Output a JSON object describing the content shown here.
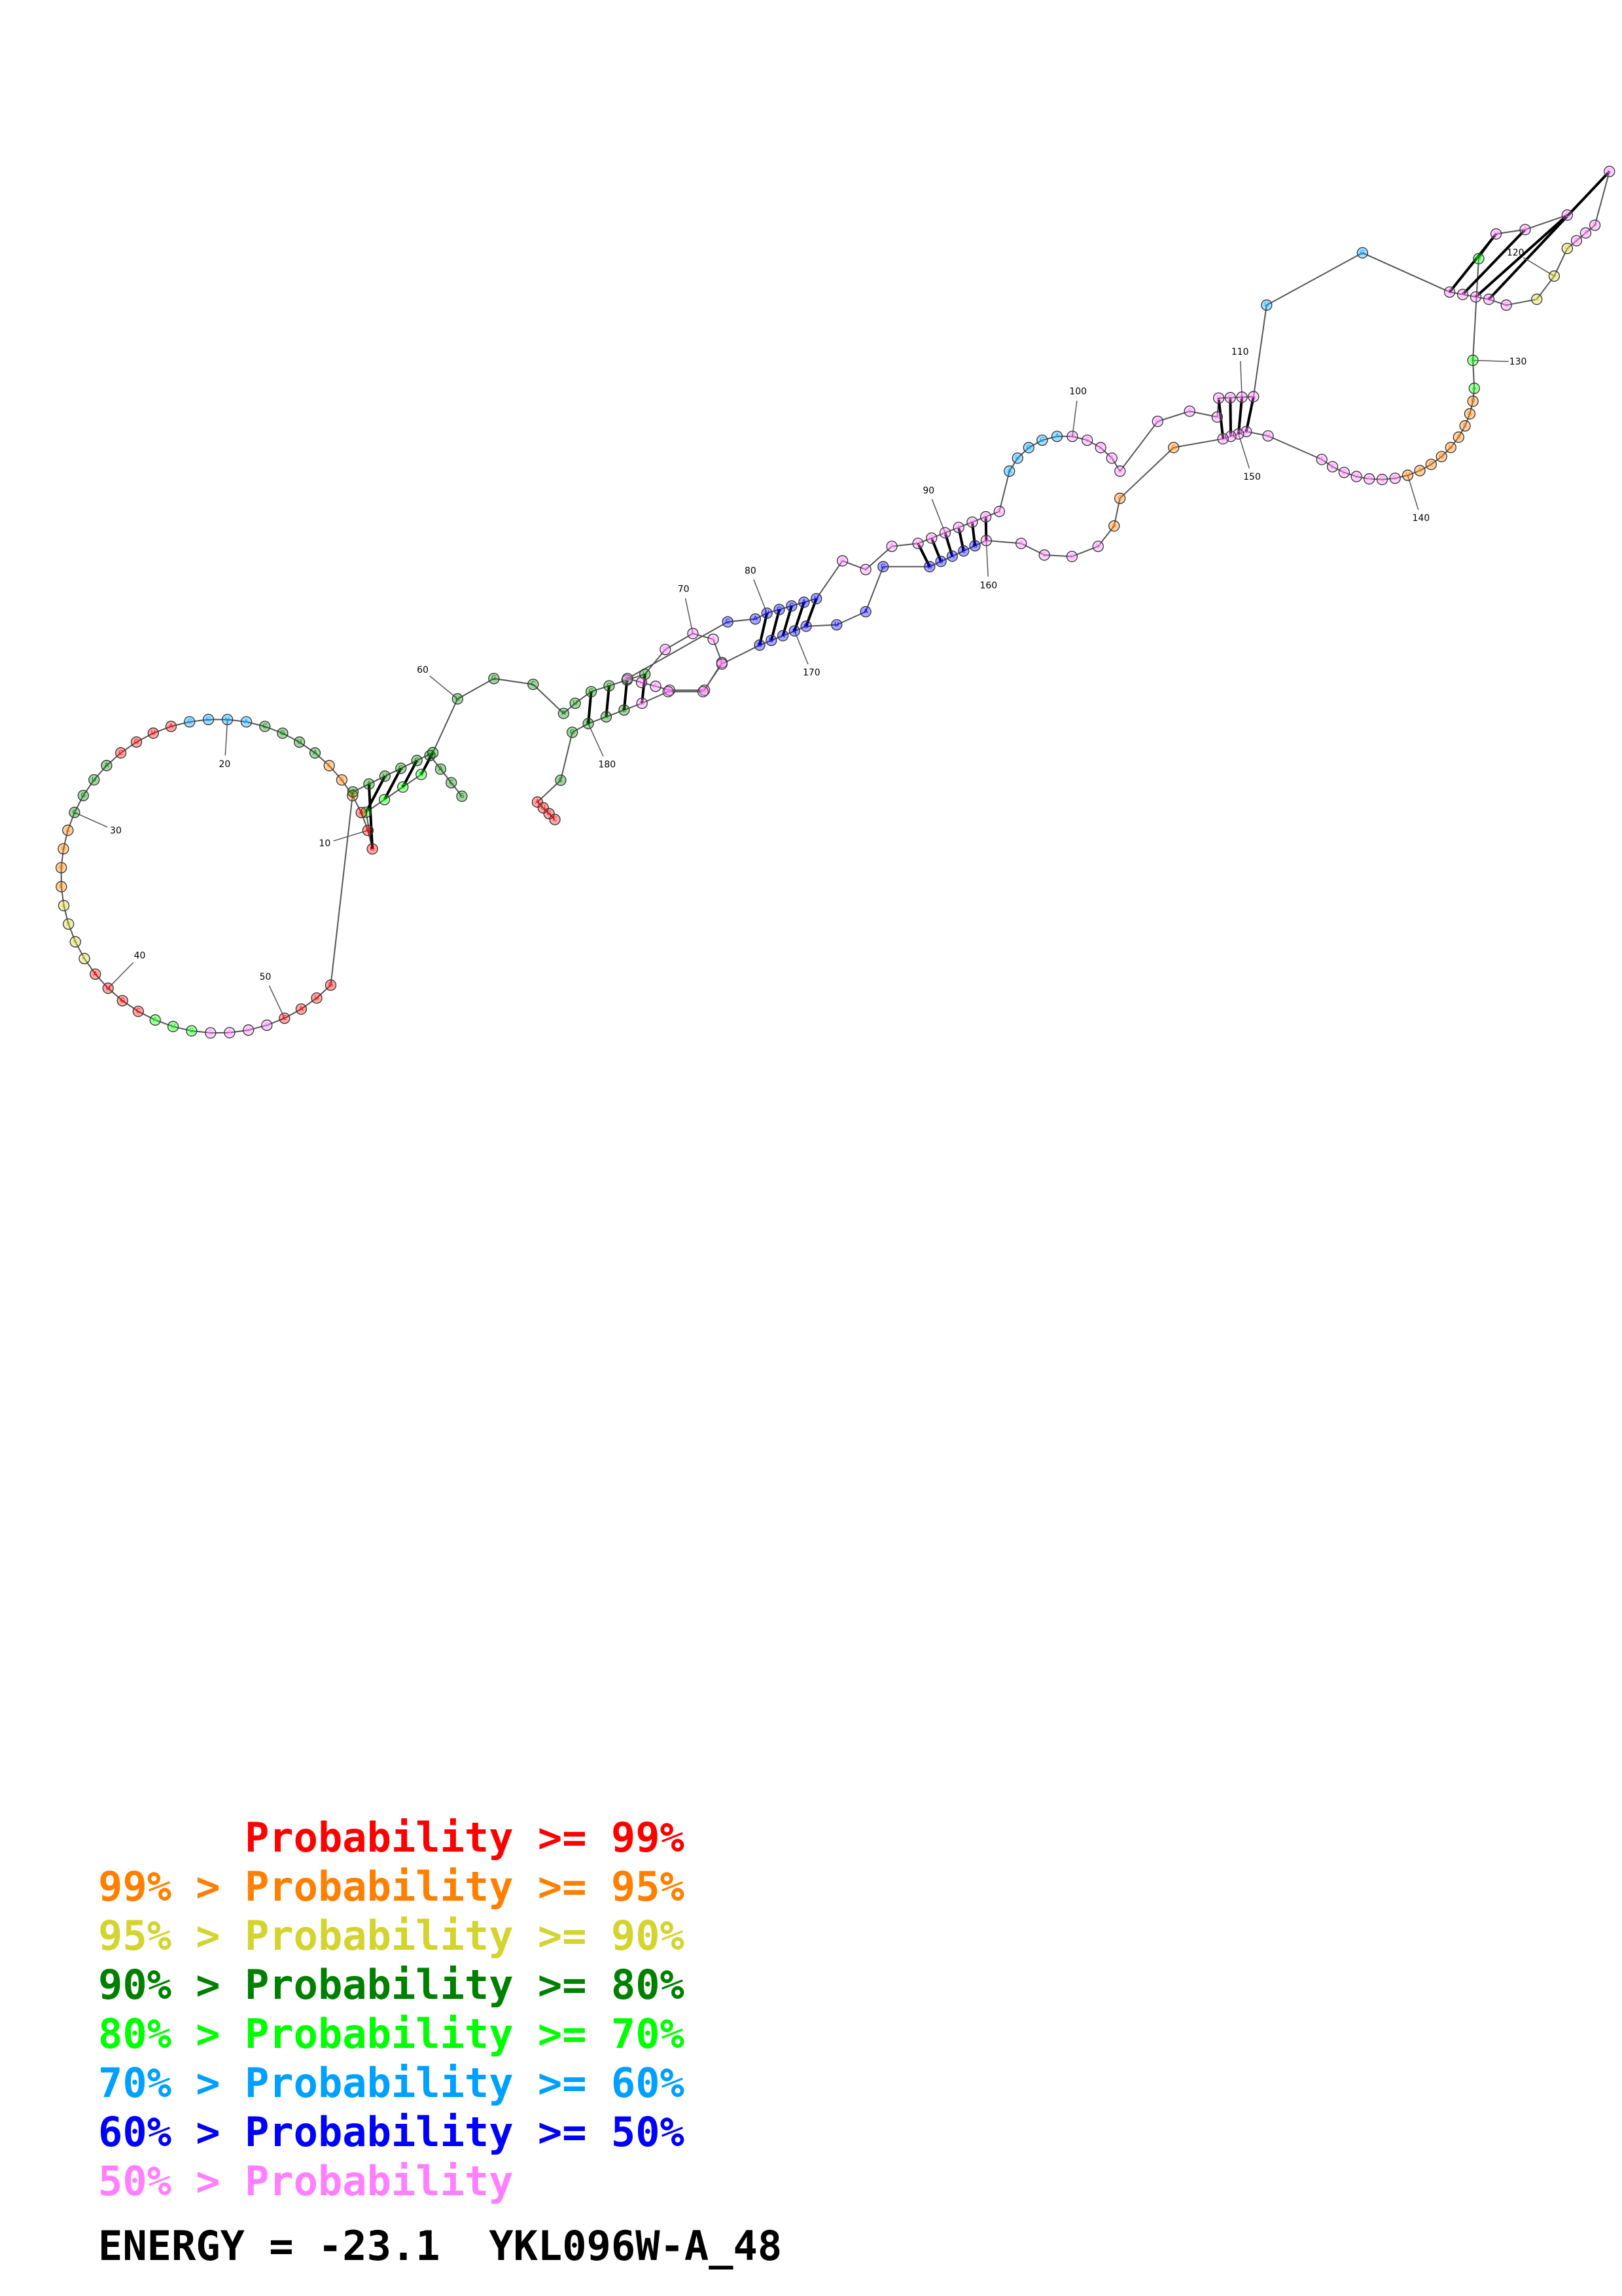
{
  "figure": {
    "colors": {
      "p99": "#ff0000",
      "p95": "#ff8000",
      "p90": "#d4d430",
      "p80": "#008000",
      "p70": "#00ff00",
      "p60": "#00a0ff",
      "p50": "#0000ff",
      "plow": "#ff80ff",
      "backbone": "#555555",
      "pair": "#000000"
    },
    "sequence_length": 186,
    "position_labels": [
      "10",
      "20",
      "30",
      "40",
      "50",
      "60",
      "70",
      "80",
      "90",
      "100",
      "110",
      "120",
      "130",
      "140",
      "150",
      "160",
      "170",
      "180"
    ]
  },
  "legend": {
    "rows": [
      {
        "prefix": "    ",
        "text": "Probability >= 99%",
        "color_key": "p99"
      },
      {
        "prefix": "99% > ",
        "text": "Probability >= 95%",
        "color_key": "p95"
      },
      {
        "prefix": "95% > ",
        "text": "Probability >= 90%",
        "color_key": "p90"
      },
      {
        "prefix": "90% > ",
        "text": "Probability >= 80%",
        "color_key": "p80"
      },
      {
        "prefix": "80% > ",
        "text": "Probability >= 70%",
        "color_key": "p70"
      },
      {
        "prefix": "70% > ",
        "text": "Probability >= 60%",
        "color_key": "p60"
      },
      {
        "prefix": "60% > ",
        "text": "Probability >= 50%",
        "color_key": "p50"
      },
      {
        "prefix": "50% > ",
        "text": "Probability",
        "color_key": "plow"
      }
    ],
    "energy_label": "ENERGY = ",
    "energy_value": "-23.1",
    "sequence_name": "YKL096W-A_48"
  }
}
